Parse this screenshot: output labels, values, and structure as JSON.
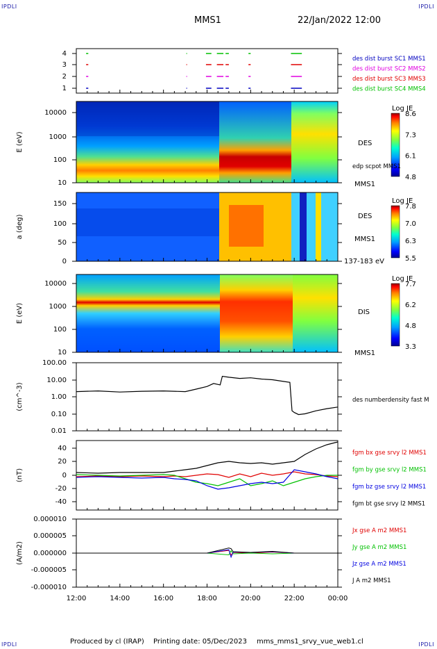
{
  "header": {
    "corner_tl": "IPDLI",
    "corner_tr": "IPDLI",
    "title": "MMS1",
    "datetime": "22/Jan/2022 12:00"
  },
  "footer": {
    "corner_bl": "IPDLI",
    "corner_br": "IPDLI",
    "produced_by": "Produced by cl (IRAP)",
    "printing_date": "Printing date: 05/Dec/2023",
    "file": "mms_mms1_srvy_vue_web1.cl"
  },
  "time_axis": {
    "ticks": [
      "12:00",
      "14:00",
      "16:00",
      "18:00",
      "20:00",
      "22:00",
      "00:00"
    ],
    "start_hour": 12,
    "end_hour": 24
  },
  "colors": {
    "mms1": "#0000c0",
    "mms2": "#e000e0",
    "mms3": "#e00000",
    "mms4": "#00c000",
    "bx": "#e00000",
    "by": "#00c000",
    "bz": "#0000e0",
    "bt": "#000000"
  },
  "chart_data": [
    {
      "type": "scatter",
      "yticks": [
        "4",
        "3",
        "2",
        "1"
      ],
      "legend": [
        {
          "label": "des dist burst SC1 MMS1",
          "color": "#0000c0"
        },
        {
          "label": "des dist burst SC2 MMS2",
          "color": "#e000e0"
        },
        {
          "label": "des dist burst SC3 MMS3",
          "color": "#e00000"
        },
        {
          "label": "des dist burst SC4 MMS4",
          "color": "#00c000"
        }
      ],
      "intervals": [
        [
          12.45,
          12.55
        ],
        [
          17.05,
          17.08
        ],
        [
          17.95,
          18.2
        ],
        [
          18.45,
          18.75
        ],
        [
          18.85,
          19.0
        ],
        [
          19.9,
          20.0
        ],
        [
          21.85,
          22.35
        ]
      ]
    },
    {
      "type": "heatmap",
      "ylabel": "E (eV)",
      "yticks": [
        "10000",
        "1000",
        "100",
        "10"
      ],
      "instrument": "DES",
      "extra_label": "edp scpot MMS1",
      "bottom_label": "MMS1",
      "colorbar": {
        "title": "Log JE",
        "ticks": [
          "8.6",
          "7.3",
          "6.1",
          "4.8"
        ]
      }
    },
    {
      "type": "heatmap",
      "ylabel": "a (deg)",
      "yticks": [
        "150",
        "100",
        "50",
        "0"
      ],
      "instrument": "DES",
      "spacecraft": "MMS1",
      "energy_range": "137-183 eV",
      "colorbar": {
        "title": "Log JE",
        "ticks": [
          "7.8",
          "7.0",
          "6.3",
          "5.5"
        ]
      }
    },
    {
      "type": "heatmap",
      "ylabel": "E (eV)",
      "yticks": [
        "10000",
        "1000",
        "100",
        "10"
      ],
      "instrument": "DIS",
      "bottom_label": "MMS1",
      "colorbar": {
        "title": "Log JE",
        "ticks": [
          "7.7",
          "6.2",
          "4.8",
          "3.3"
        ]
      }
    },
    {
      "type": "line",
      "ylabel": "(cm^-3)",
      "yticks": [
        "100.00",
        "10.00",
        "1.00",
        "0.10",
        "0.01"
      ],
      "ylim": [
        0.01,
        100
      ],
      "scale": "log",
      "legend": [
        {
          "label": "des numberdensity fast M",
          "color": "#000000"
        }
      ],
      "x": [
        12.0,
        13.0,
        14.0,
        15.0,
        16.0,
        17.0,
        17.5,
        18.0,
        18.3,
        18.6,
        18.7,
        19.0,
        19.5,
        20.0,
        20.5,
        21.0,
        21.5,
        21.8,
        21.9,
        22.0,
        22.2,
        22.5,
        23.0,
        23.5,
        24.0
      ],
      "values": [
        2.0,
        2.2,
        1.9,
        2.1,
        2.2,
        2.0,
        2.8,
        4.0,
        6.0,
        5.0,
        16.0,
        14.0,
        12.0,
        13.0,
        11.0,
        10.0,
        8.0,
        7.0,
        0.15,
        0.12,
        0.09,
        0.1,
        0.15,
        0.2,
        0.25
      ]
    },
    {
      "type": "line",
      "ylabel": "(nT)",
      "yticks": [
        "40",
        "20",
        "0",
        "-20",
        "-40"
      ],
      "ylim": [
        -50,
        50
      ],
      "x": [
        12.0,
        13.0,
        14.0,
        15.0,
        16.0,
        16.5,
        17.0,
        17.5,
        18.0,
        18.5,
        19.0,
        19.5,
        20.0,
        20.5,
        21.0,
        21.5,
        22.0,
        22.5,
        23.0,
        23.5,
        24.0
      ],
      "series": [
        {
          "name": "fgm bx gse srvy l2 MMS1",
          "color": "#e00000",
          "values": [
            -2,
            -1,
            -2,
            -1,
            -2,
            -1,
            -2,
            0,
            2,
            1,
            -3,
            2,
            -2,
            3,
            0,
            2,
            5,
            2,
            1,
            -1,
            -2
          ]
        },
        {
          "name": "fgm by gse srvy l2 MMS1",
          "color": "#00c000",
          "values": [
            1,
            0,
            -1,
            0,
            1,
            0,
            -5,
            -10,
            -12,
            -15,
            -10,
            -5,
            -15,
            -12,
            -8,
            -15,
            -10,
            -5,
            -2,
            0,
            0
          ]
        },
        {
          "name": "fgm bz gse srvy l2 MMS1",
          "color": "#0000e0",
          "values": [
            -3,
            -2,
            -3,
            -4,
            -3,
            -5,
            -6,
            -8,
            -15,
            -20,
            -18,
            -15,
            -12,
            -10,
            -12,
            -10,
            8,
            5,
            2,
            -2,
            -5
          ]
        },
        {
          "name": "fgm bt gse srvy l2 MMS1",
          "color": "#000000",
          "values": [
            4,
            3,
            4,
            4,
            4,
            6,
            8,
            10,
            14,
            18,
            20,
            18,
            17,
            18,
            16,
            18,
            20,
            30,
            38,
            44,
            48
          ]
        }
      ]
    },
    {
      "type": "line",
      "ylabel": "(A/m2)",
      "yticks": [
        "0.000010",
        "0.000005",
        "0.000000",
        "-0.000005",
        "-0.000010"
      ],
      "ylim": [
        -1e-05,
        1e-05
      ],
      "x": [
        12.0,
        14.0,
        16.0,
        18.0,
        19.0,
        19.1,
        19.2,
        20.0,
        21.0,
        22.0,
        24.0
      ],
      "series": [
        {
          "name": "Jx gse A m2 MMS1",
          "color": "#e00000",
          "values": [
            0,
            0,
            0,
            0,
            8e-07,
            -6e-07,
            2e-07,
            0,
            3e-07,
            0,
            0
          ]
        },
        {
          "name": "Jy gse A m2 MMS1",
          "color": "#00c000",
          "values": [
            0,
            0,
            0,
            0,
            -5e-07,
            7e-07,
            -2e-07,
            0,
            -2e-07,
            0,
            0
          ]
        },
        {
          "name": "Jz gse A m2 MMS1",
          "color": "#0000e0",
          "values": [
            0,
            0,
            0,
            0,
            1e-06,
            -1.2e-06,
            3e-07,
            2e-07,
            4e-07,
            0,
            0
          ]
        },
        {
          "name": "J A m2 MMS1",
          "color": "#000000",
          "values": [
            0,
            0,
            0,
            0,
            1.5e-06,
            1.3e-06,
            4e-07,
            2e-07,
            5e-07,
            0,
            0
          ]
        }
      ]
    }
  ]
}
